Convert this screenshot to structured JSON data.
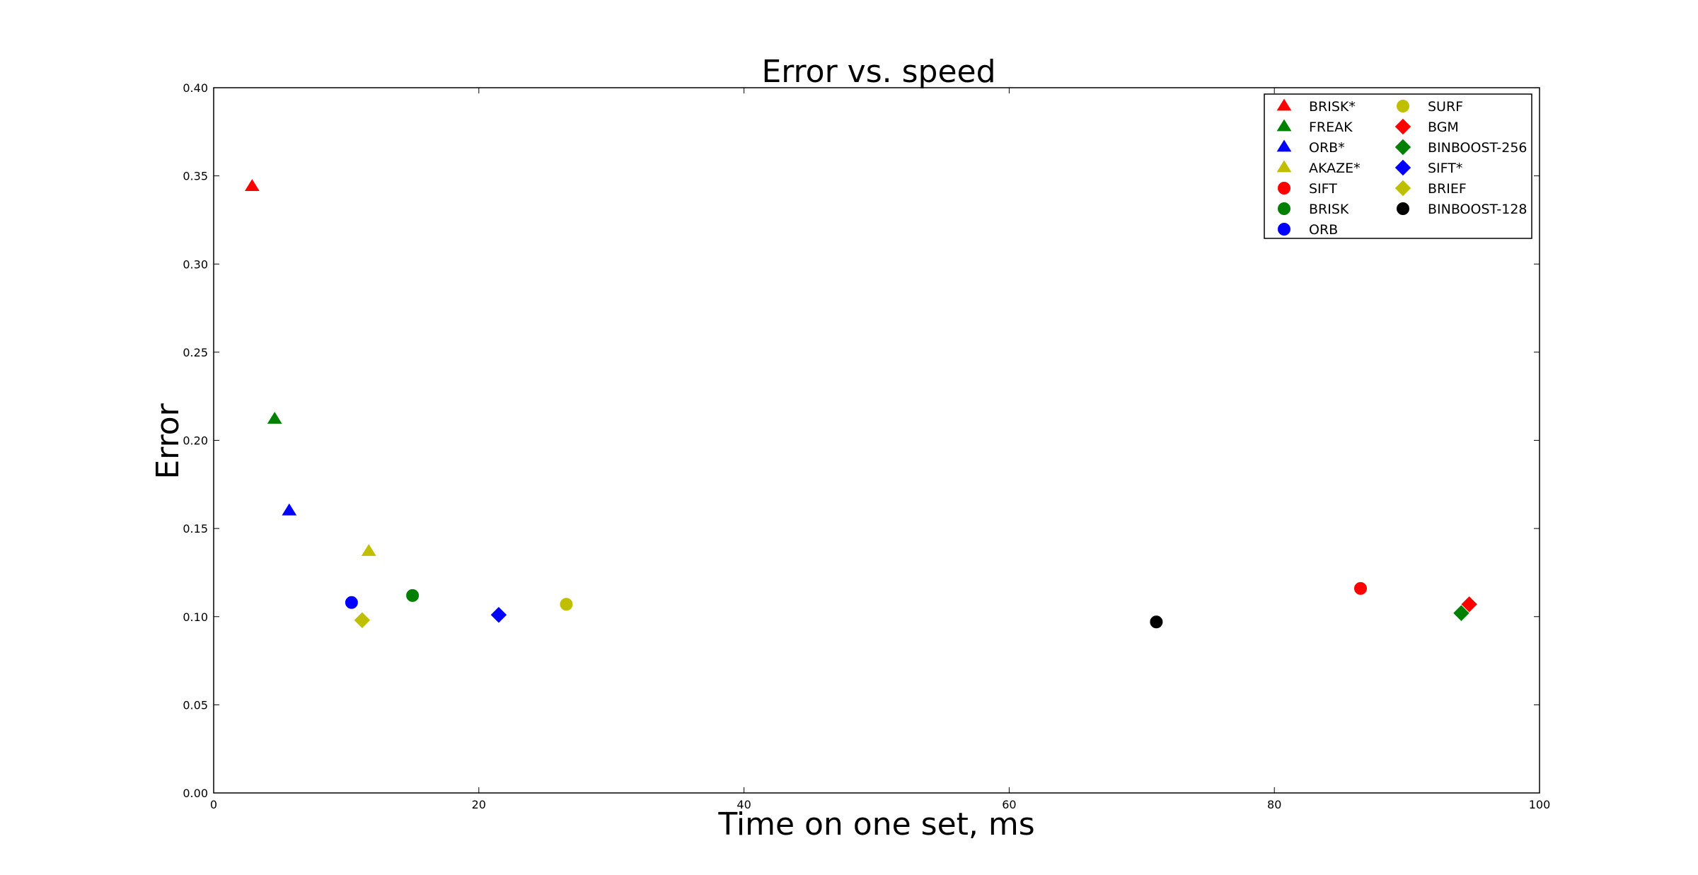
{
  "chart_data": {
    "type": "scatter",
    "title": "Error vs. speed",
    "xlabel": "Time on one set, ms",
    "ylabel": "Error",
    "xlim": [
      0,
      100
    ],
    "ylim": [
      0.0,
      0.4
    ],
    "xticks": [
      "0",
      "20",
      "40",
      "60",
      "80",
      "100"
    ],
    "yticks": [
      "0.00",
      "0.05",
      "0.10",
      "0.15",
      "0.20",
      "0.25",
      "0.30",
      "0.35",
      "0.40"
    ],
    "grid": false,
    "legend_position": "top-right",
    "legend_columns": 2,
    "series": [
      {
        "name": "BRISK*",
        "marker": "triangle",
        "color": "#ff0000",
        "x": 2.9,
        "y": 0.344
      },
      {
        "name": "FREAK",
        "marker": "triangle",
        "color": "#008000",
        "x": 4.6,
        "y": 0.212
      },
      {
        "name": "ORB*",
        "marker": "triangle",
        "color": "#0000ff",
        "x": 5.7,
        "y": 0.16
      },
      {
        "name": "AKAZE*",
        "marker": "triangle",
        "color": "#bfbf00",
        "x": 11.7,
        "y": 0.137
      },
      {
        "name": "SIFT",
        "marker": "circle",
        "color": "#ff0000",
        "x": 86.5,
        "y": 0.116
      },
      {
        "name": "BRISK",
        "marker": "circle",
        "color": "#008000",
        "x": 15.0,
        "y": 0.112
      },
      {
        "name": "ORB",
        "marker": "circle",
        "color": "#0000ff",
        "x": 10.4,
        "y": 0.108
      },
      {
        "name": "SURF",
        "marker": "circle",
        "color": "#bfbf00",
        "x": 26.6,
        "y": 0.107
      },
      {
        "name": "BGM",
        "marker": "diamond",
        "color": "#ff0000",
        "x": 94.7,
        "y": 0.107
      },
      {
        "name": "BINBOOST-256",
        "marker": "diamond",
        "color": "#008000",
        "x": 94.1,
        "y": 0.102
      },
      {
        "name": "SIFT*",
        "marker": "diamond",
        "color": "#0000ff",
        "x": 21.5,
        "y": 0.101
      },
      {
        "name": "BRIEF",
        "marker": "diamond",
        "color": "#bfbf00",
        "x": 11.2,
        "y": 0.098
      },
      {
        "name": "BINBOOST-128",
        "marker": "circle",
        "color": "#000000",
        "x": 71.1,
        "y": 0.097
      }
    ]
  }
}
